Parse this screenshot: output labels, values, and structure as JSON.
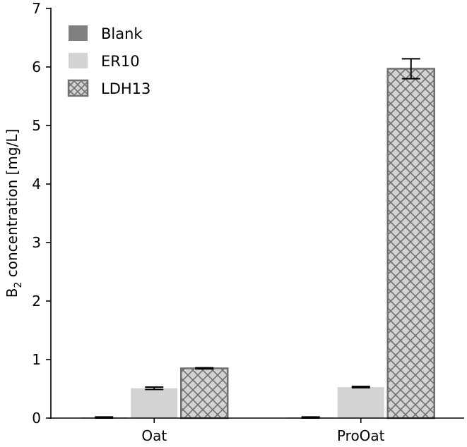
{
  "chart_data": {
    "type": "bar",
    "categories": [
      "Oat",
      "ProOat"
    ],
    "series": [
      {
        "name": "Blank",
        "values": [
          0.01,
          0.01
        ],
        "errors": [
          0.01,
          0.01
        ],
        "color": "#808080",
        "pattern": "solid"
      },
      {
        "name": "ER10",
        "values": [
          0.51,
          0.53
        ],
        "errors": [
          0.02,
          0.01
        ],
        "color": "#d3d3d3",
        "pattern": "solid"
      },
      {
        "name": "LDH13",
        "values": [
          0.85,
          5.97
        ],
        "errors": [
          0.01,
          0.17
        ],
        "color": "#d3d3d3",
        "edge_color": "#707070",
        "pattern": "crosshatch"
      }
    ],
    "ylabel_main": "B",
    "ylabel_sub": "2",
    "ylabel_rest": " concentration [mg/L]",
    "xlabel": "",
    "ylim": [
      0,
      7
    ],
    "yticks": [
      "0",
      "1",
      "2",
      "3",
      "4",
      "5",
      "6",
      "7"
    ],
    "legend_position": "top-left",
    "grid": false
  }
}
